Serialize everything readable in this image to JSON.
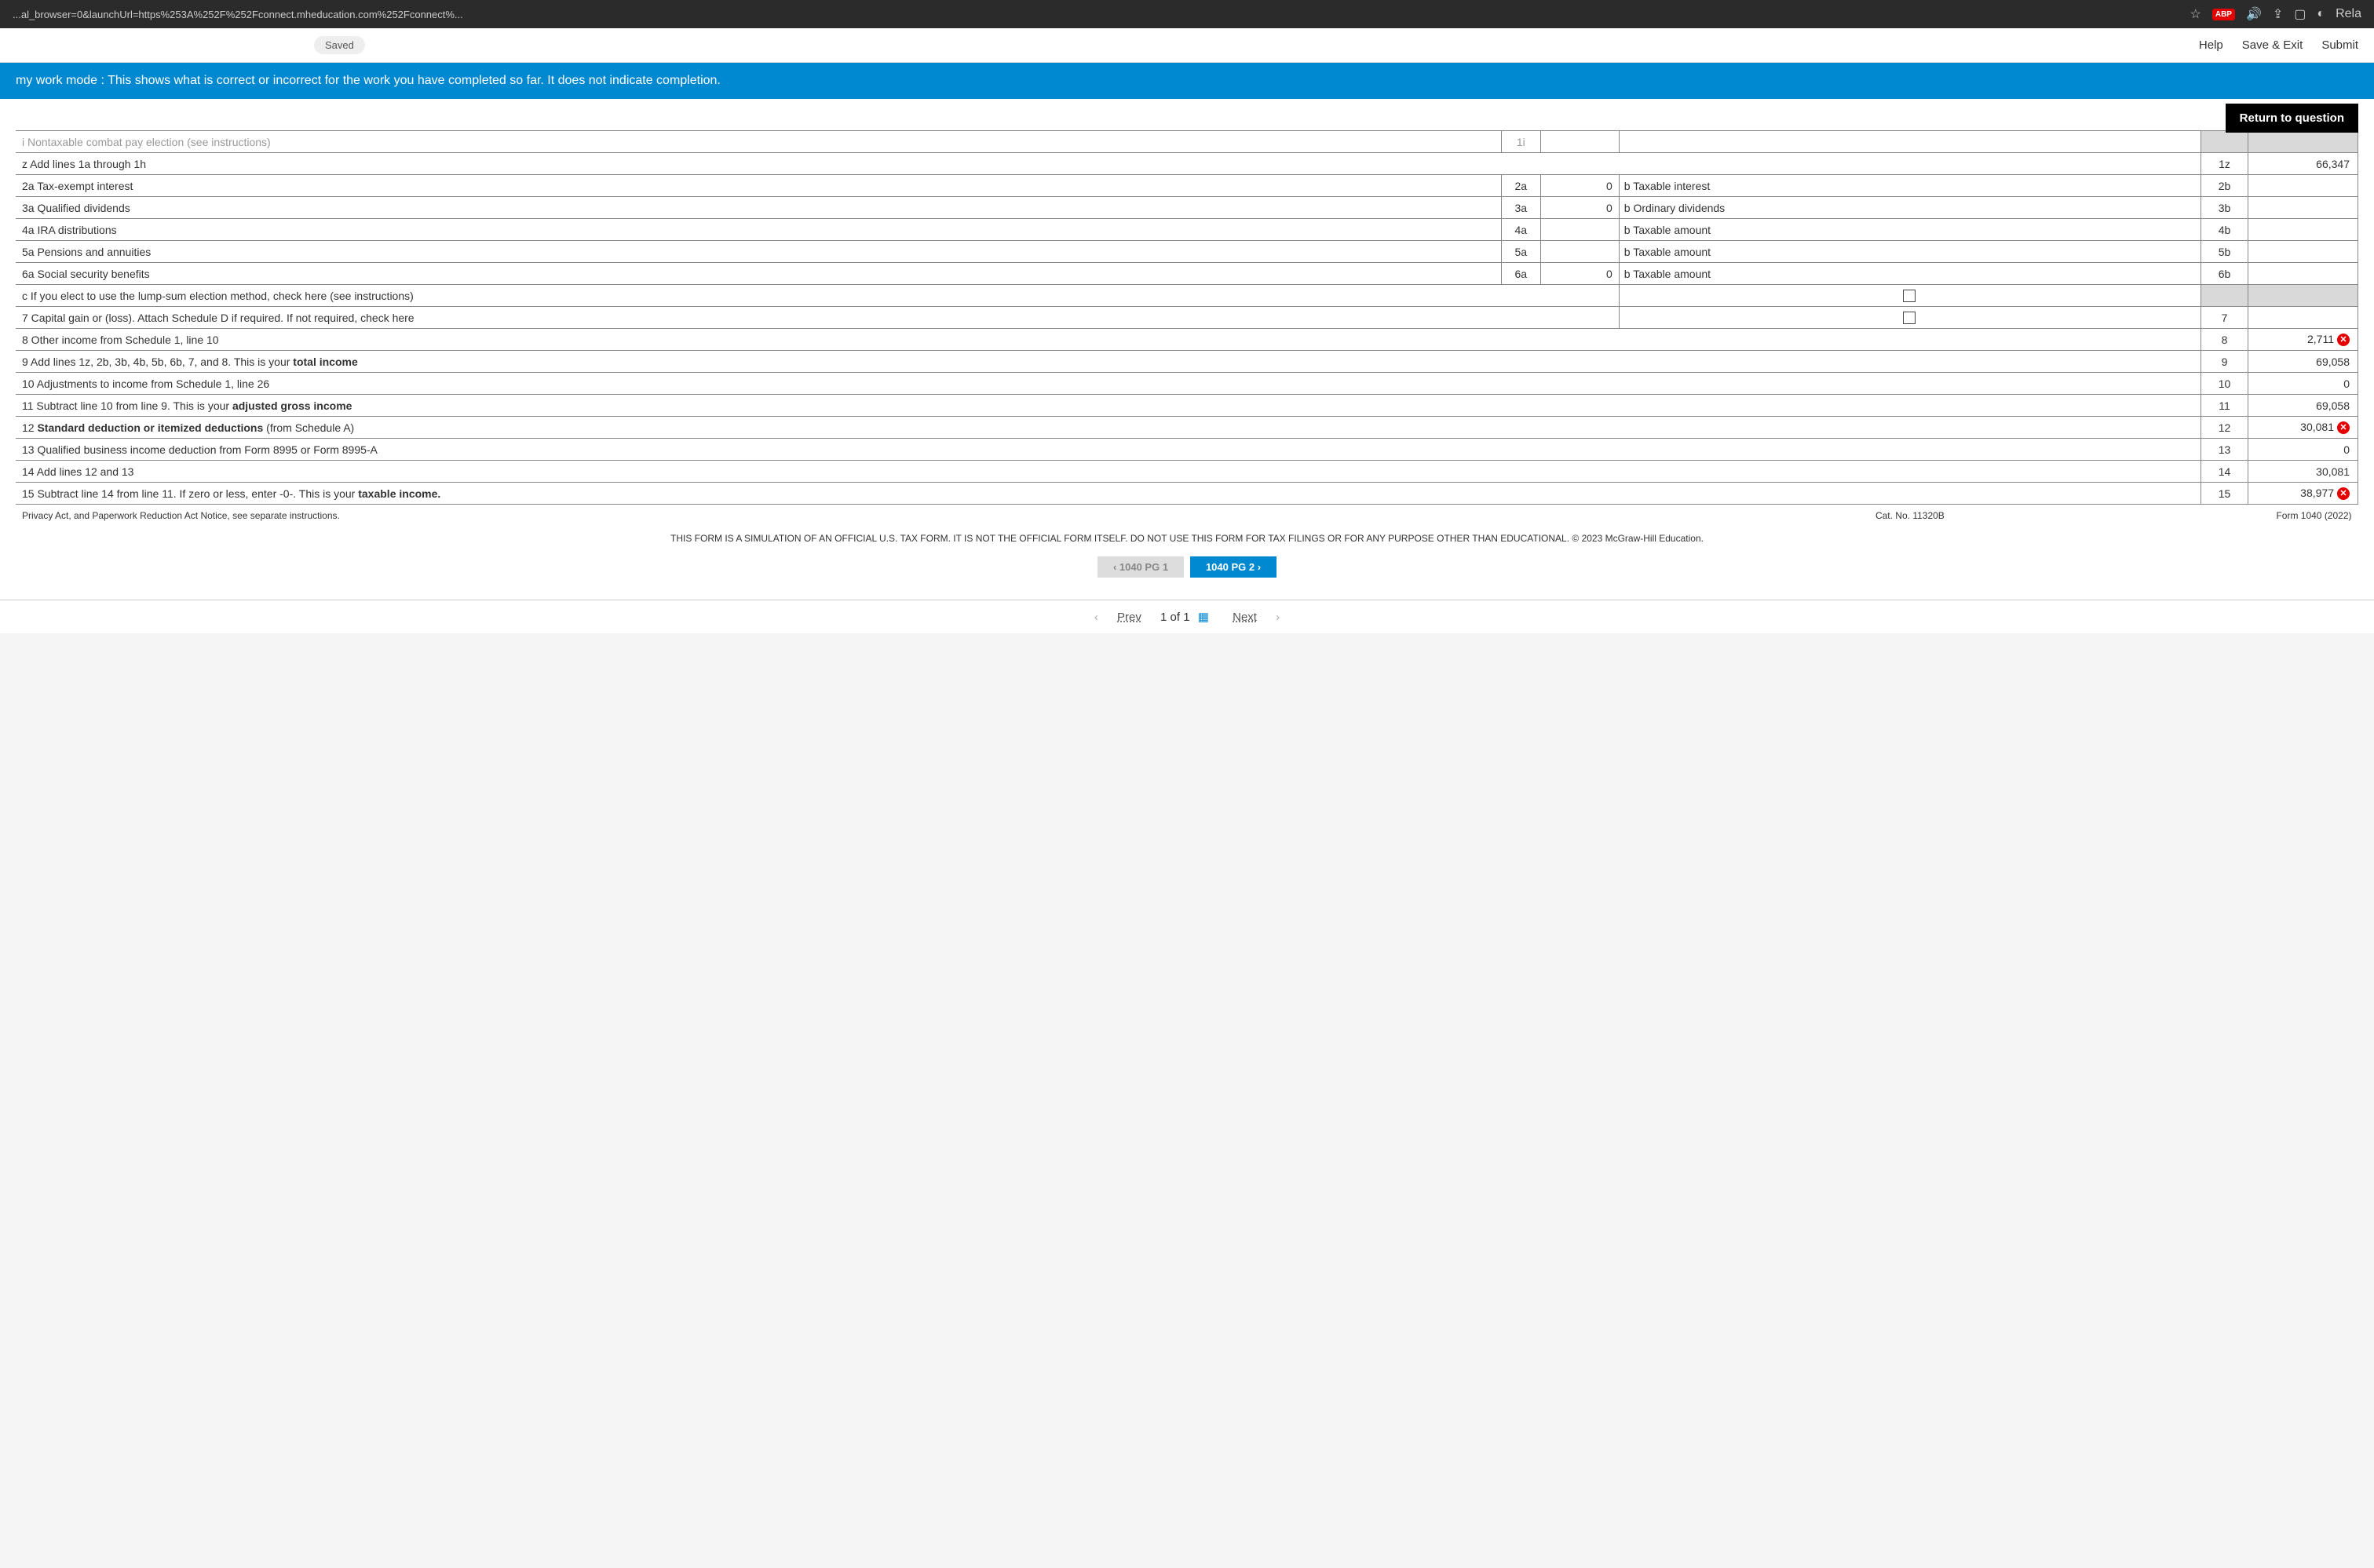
{
  "browser": {
    "url": "...al_browser=0&launchUrl=https%253A%252F%252Fconnect.mheducation.com%252Fconnect%...",
    "star": "☆",
    "abp": "ABP",
    "relaunch": "Rela"
  },
  "topbar": {
    "saved": "Saved",
    "help": "Help",
    "save_exit": "Save & Exit",
    "submit": "Submit"
  },
  "banner": "my work mode : This shows what is correct or incorrect for the work you have completed so far. It does not indicate completion.",
  "return_btn": "Return to question",
  "form": {
    "row_i": "i Nontaxable combat pay election (see instructions)",
    "row_i_num": "1i",
    "row_z": "z Add lines 1a through 1h",
    "row_z_num": "1z",
    "row_z_val": "66,347",
    "row_2a": "2a Tax-exempt interest",
    "mid_2a": "2a",
    "mid_2a_val": "0",
    "desc_2b": "b Taxable interest",
    "num_2b": "2b",
    "row_3a": "3a Qualified dividends",
    "mid_3a": "3a",
    "mid_3a_val": "0",
    "desc_3b": "b Ordinary dividends",
    "num_3b": "3b",
    "row_4a": "4a IRA distributions",
    "mid_4a": "4a",
    "desc_4b": "b Taxable amount",
    "num_4b": "4b",
    "row_5a": "5a Pensions and annuities",
    "mid_5a": "5a",
    "desc_5b": "b Taxable amount",
    "num_5b": "5b",
    "row_6a": "6a Social security benefits",
    "mid_6a": "6a",
    "mid_6a_val": "0",
    "desc_6b": "b Taxable amount",
    "num_6b": "6b",
    "row_6c": "c If you elect to use the lump-sum election method, check here (see instructions)",
    "row_7": "7 Capital gain or (loss). Attach Schedule D if required. If not required, check here",
    "num_7": "7",
    "row_8": "8 Other income from Schedule 1, line 10",
    "num_8": "8",
    "val_8": "2,711",
    "row_9_a": "9 Add lines 1z, 2b, 3b, 4b, 5b, 6b, 7, and 8. This is your ",
    "row_9_b": "total income",
    "num_9": "9",
    "val_9": "69,058",
    "row_10": "10 Adjustments to income from Schedule 1, line 26",
    "num_10": "10",
    "val_10": "0",
    "row_11_a": "11 Subtract line 10 from line 9. This is your ",
    "row_11_b": "adjusted gross income",
    "num_11": "11",
    "val_11": "69,058",
    "row_12_a": "12 ",
    "row_12_b": "Standard deduction or itemized deductions ",
    "row_12_c": "(from Schedule A)",
    "num_12": "12",
    "val_12": "30,081",
    "row_13": "13 Qualified business income deduction from Form 8995 or Form 8995-A",
    "num_13": "13",
    "val_13": "0",
    "row_14": "14 Add lines 12 and 13",
    "num_14": "14",
    "val_14": "30,081",
    "row_15_a": "15 Subtract line 14 from line 11. If zero or less, enter -0-. This is your ",
    "row_15_b": "taxable income.",
    "num_15": "15",
    "val_15": "38,977",
    "privacy": "Privacy Act, and Paperwork Reduction Act Notice, see separate instructions.",
    "cat_no": "Cat. No. 11320B",
    "form_no": "Form 1040 (2022)",
    "disclaimer": "THIS FORM IS A SIMULATION OF AN OFFICIAL U.S. TAX FORM. IT IS NOT THE OFFICIAL FORM ITSELF. DO NOT USE THIS FORM FOR TAX FILINGS OR FOR ANY PURPOSE OTHER THAN EDUCATIONAL. © 2023 McGraw-Hill Education."
  },
  "tabs": {
    "pg1": "1040 PG 1",
    "pg2": "1040 PG 2"
  },
  "nav": {
    "prev": "Prev",
    "count": "1 of 1",
    "next": "Next"
  }
}
